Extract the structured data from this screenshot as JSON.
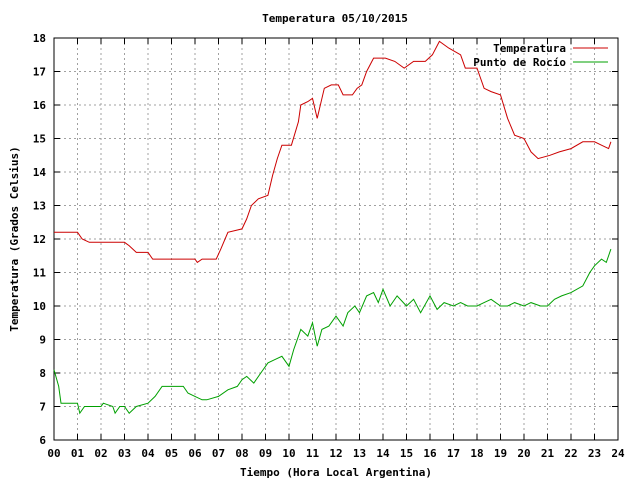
{
  "chart_data": {
    "type": "line",
    "title": "Temperatura 05/10/2015",
    "xlabel": "Tiempo (Hora Local Argentina)",
    "ylabel": "Temperatura (Grados Celsius)",
    "xlim": [
      0,
      24
    ],
    "ylim": [
      6,
      18
    ],
    "xticks": [
      0,
      1,
      2,
      3,
      4,
      5,
      6,
      7,
      8,
      9,
      10,
      11,
      12,
      13,
      14,
      15,
      16,
      17,
      18,
      19,
      20,
      21,
      22,
      23,
      24
    ],
    "xtick_labels": [
      "00",
      "01",
      "02",
      "03",
      "04",
      "05",
      "06",
      "07",
      "08",
      "09",
      "10",
      "11",
      "12",
      "13",
      "14",
      "15",
      "16",
      "17",
      "18",
      "19",
      "20",
      "21",
      "22",
      "23",
      "24"
    ],
    "yticks": [
      6,
      7,
      8,
      9,
      10,
      11,
      12,
      13,
      14,
      15,
      16,
      17,
      18
    ],
    "ytick_labels": [
      "6",
      "7",
      "8",
      "9",
      "10",
      "11",
      "12",
      "13",
      "14",
      "15",
      "16",
      "17",
      "18"
    ],
    "grid": true,
    "legend_position": "top-right",
    "series": [
      {
        "name": "Temperatura",
        "color": "#cc0000",
        "points": [
          [
            0.0,
            12.2
          ],
          [
            1.0,
            12.2
          ],
          [
            1.2,
            12.0
          ],
          [
            1.5,
            11.9
          ],
          [
            3.0,
            11.9
          ],
          [
            3.2,
            11.8
          ],
          [
            3.5,
            11.6
          ],
          [
            4.0,
            11.6
          ],
          [
            4.2,
            11.4
          ],
          [
            6.0,
            11.4
          ],
          [
            6.1,
            11.3
          ],
          [
            6.3,
            11.4
          ],
          [
            6.9,
            11.4
          ],
          [
            7.1,
            11.7
          ],
          [
            7.4,
            12.2
          ],
          [
            8.0,
            12.3
          ],
          [
            8.2,
            12.6
          ],
          [
            8.4,
            13.0
          ],
          [
            8.7,
            13.2
          ],
          [
            9.1,
            13.3
          ],
          [
            9.3,
            13.9
          ],
          [
            9.5,
            14.4
          ],
          [
            9.7,
            14.8
          ],
          [
            10.1,
            14.8
          ],
          [
            10.4,
            15.5
          ],
          [
            10.5,
            16.0
          ],
          [
            10.8,
            16.1
          ],
          [
            11.0,
            16.2
          ],
          [
            11.2,
            15.6
          ],
          [
            11.5,
            16.5
          ],
          [
            11.8,
            16.6
          ],
          [
            12.1,
            16.6
          ],
          [
            12.3,
            16.3
          ],
          [
            12.7,
            16.3
          ],
          [
            12.9,
            16.5
          ],
          [
            13.1,
            16.6
          ],
          [
            13.3,
            17.0
          ],
          [
            13.6,
            17.4
          ],
          [
            14.1,
            17.4
          ],
          [
            14.5,
            17.3
          ],
          [
            14.9,
            17.1
          ],
          [
            15.3,
            17.3
          ],
          [
            15.8,
            17.3
          ],
          [
            16.1,
            17.5
          ],
          [
            16.4,
            17.9
          ],
          [
            16.8,
            17.7
          ],
          [
            17.3,
            17.5
          ],
          [
            17.5,
            17.1
          ],
          [
            18.0,
            17.1
          ],
          [
            18.3,
            16.5
          ],
          [
            18.6,
            16.4
          ],
          [
            19.0,
            16.3
          ],
          [
            19.3,
            15.6
          ],
          [
            19.6,
            15.1
          ],
          [
            20.0,
            15.0
          ],
          [
            20.3,
            14.6
          ],
          [
            20.6,
            14.4
          ],
          [
            21.1,
            14.5
          ],
          [
            21.5,
            14.6
          ],
          [
            22.0,
            14.7
          ],
          [
            22.5,
            14.9
          ],
          [
            23.0,
            14.9
          ],
          [
            23.3,
            14.8
          ],
          [
            23.6,
            14.7
          ],
          [
            23.7,
            14.9
          ]
        ]
      },
      {
        "name": "Punto de Rocío",
        "color": "#00a000",
        "points": [
          [
            0.0,
            8.1
          ],
          [
            0.2,
            7.6
          ],
          [
            0.3,
            7.1
          ],
          [
            1.0,
            7.1
          ],
          [
            1.1,
            6.8
          ],
          [
            1.3,
            7.0
          ],
          [
            2.0,
            7.0
          ],
          [
            2.1,
            7.1
          ],
          [
            2.5,
            7.0
          ],
          [
            2.6,
            6.8
          ],
          [
            2.8,
            7.0
          ],
          [
            3.0,
            7.0
          ],
          [
            3.2,
            6.8
          ],
          [
            3.5,
            7.0
          ],
          [
            4.0,
            7.1
          ],
          [
            4.3,
            7.3
          ],
          [
            4.6,
            7.6
          ],
          [
            5.5,
            7.6
          ],
          [
            5.7,
            7.4
          ],
          [
            6.0,
            7.3
          ],
          [
            6.3,
            7.2
          ],
          [
            6.5,
            7.2
          ],
          [
            7.0,
            7.3
          ],
          [
            7.4,
            7.5
          ],
          [
            7.8,
            7.6
          ],
          [
            8.0,
            7.8
          ],
          [
            8.2,
            7.9
          ],
          [
            8.5,
            7.7
          ],
          [
            8.8,
            8.0
          ],
          [
            9.1,
            8.3
          ],
          [
            9.4,
            8.4
          ],
          [
            9.7,
            8.5
          ],
          [
            10.0,
            8.2
          ],
          [
            10.2,
            8.7
          ],
          [
            10.5,
            9.3
          ],
          [
            10.8,
            9.1
          ],
          [
            11.0,
            9.5
          ],
          [
            11.2,
            8.8
          ],
          [
            11.4,
            9.3
          ],
          [
            11.7,
            9.4
          ],
          [
            12.0,
            9.7
          ],
          [
            12.3,
            9.4
          ],
          [
            12.5,
            9.8
          ],
          [
            12.8,
            10.0
          ],
          [
            13.0,
            9.8
          ],
          [
            13.3,
            10.3
          ],
          [
            13.6,
            10.4
          ],
          [
            13.8,
            10.1
          ],
          [
            14.0,
            10.5
          ],
          [
            14.3,
            10.0
          ],
          [
            14.6,
            10.3
          ],
          [
            15.0,
            10.0
          ],
          [
            15.3,
            10.2
          ],
          [
            15.6,
            9.8
          ],
          [
            16.0,
            10.3
          ],
          [
            16.3,
            9.9
          ],
          [
            16.6,
            10.1
          ],
          [
            17.0,
            10.0
          ],
          [
            17.3,
            10.1
          ],
          [
            17.6,
            10.0
          ],
          [
            18.0,
            10.0
          ],
          [
            18.3,
            10.1
          ],
          [
            18.6,
            10.2
          ],
          [
            19.0,
            10.0
          ],
          [
            19.3,
            10.0
          ],
          [
            19.6,
            10.1
          ],
          [
            20.0,
            10.0
          ],
          [
            20.3,
            10.1
          ],
          [
            20.7,
            10.0
          ],
          [
            21.0,
            10.0
          ],
          [
            21.3,
            10.2
          ],
          [
            21.6,
            10.3
          ],
          [
            22.0,
            10.4
          ],
          [
            22.5,
            10.6
          ],
          [
            22.8,
            11.0
          ],
          [
            23.0,
            11.2
          ],
          [
            23.3,
            11.4
          ],
          [
            23.5,
            11.3
          ],
          [
            23.7,
            11.7
          ]
        ]
      }
    ]
  }
}
